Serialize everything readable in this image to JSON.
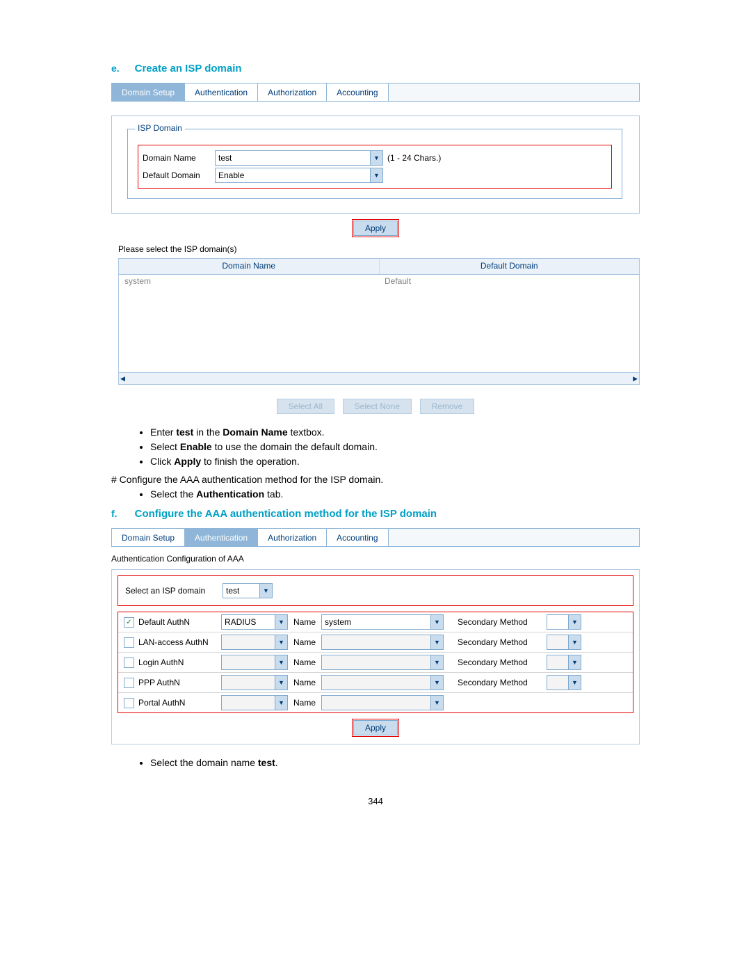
{
  "section_e": {
    "letter": "e.",
    "title": "Create an ISP domain",
    "tabs": [
      "Domain Setup",
      "Authentication",
      "Authorization",
      "Accounting"
    ],
    "active_tab_index": 0,
    "fieldset_legend": "ISP Domain",
    "domain_name_label": "Domain Name",
    "domain_name_value": "test",
    "domain_name_hint": "(1 - 24 Chars.)",
    "default_domain_label": "Default Domain",
    "default_domain_value": "Enable",
    "apply_label": "Apply",
    "select_prompt": "Please select the ISP domain(s)",
    "table_headers": [
      "Domain Name",
      "Default Domain"
    ],
    "table_row": {
      "name": "system",
      "default": "Default"
    },
    "buttons": [
      "Select All",
      "Select None",
      "Remove"
    ],
    "bullets": [
      {
        "pre": "Enter ",
        "b": "test",
        "post": " in the ",
        "b2": "Domain Name",
        "post2": " textbox."
      },
      {
        "pre": "Select ",
        "b": "Enable",
        "post": " to use the domain the default domain.",
        "b2": "",
        "post2": ""
      },
      {
        "pre": "Click ",
        "b": "Apply",
        "post": " to finish the operation.",
        "b2": "",
        "post2": ""
      }
    ],
    "hash_text": "# Configure the AAA authentication method for the ISP domain.",
    "bullet4": {
      "pre": "Select the ",
      "b": "Authentication",
      "post": " tab."
    }
  },
  "section_f": {
    "letter": "f.",
    "title": "Configure the AAA authentication method for the ISP domain",
    "tabs": [
      "Domain Setup",
      "Authentication",
      "Authorization",
      "Accounting"
    ],
    "active_tab_index": 1,
    "subtitle": "Authentication Configuration of AAA",
    "select_label": "Select an ISP domain",
    "select_value": "test",
    "rows": [
      {
        "checked": true,
        "label": "Default AuthN",
        "combo1": "RADIUS",
        "name_label": "Name",
        "combo2": "system",
        "sec": "Secondary Method",
        "has_sec": true,
        "enabled": true
      },
      {
        "checked": false,
        "label": "LAN-access AuthN",
        "combo1": "",
        "name_label": "Name",
        "combo2": "",
        "sec": "Secondary Method",
        "has_sec": true,
        "enabled": false
      },
      {
        "checked": false,
        "label": "Login AuthN",
        "combo1": "",
        "name_label": "Name",
        "combo2": "",
        "sec": "Secondary Method",
        "has_sec": true,
        "enabled": false
      },
      {
        "checked": false,
        "label": "PPP AuthN",
        "combo1": "",
        "name_label": "Name",
        "combo2": "",
        "sec": "Secondary Method",
        "has_sec": true,
        "enabled": false
      },
      {
        "checked": false,
        "label": "Portal AuthN",
        "combo1": "",
        "name_label": "Name",
        "combo2": "",
        "sec": "",
        "has_sec": false,
        "enabled": false
      }
    ],
    "apply_label": "Apply",
    "bullet": {
      "pre": "Select the domain name ",
      "b": "test",
      "post": "."
    }
  },
  "page_number": "344"
}
